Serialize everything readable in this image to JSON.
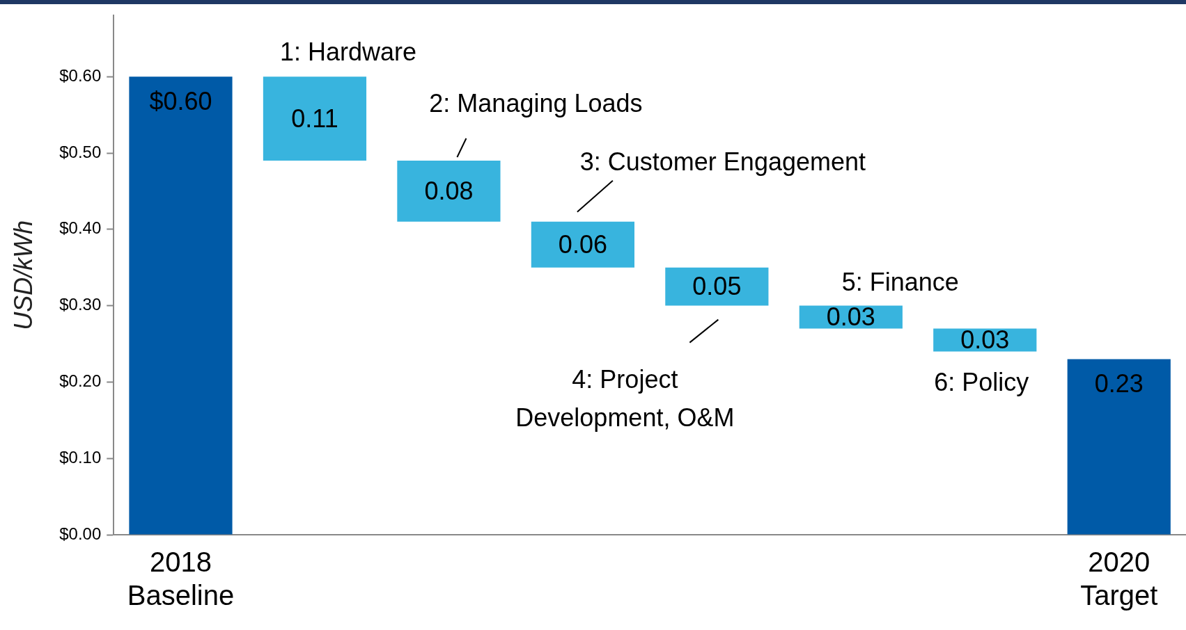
{
  "chart_data": {
    "type": "bar",
    "ylabel": "USD/kWh",
    "categories": [
      "2018 Baseline",
      null,
      null,
      null,
      null,
      null,
      null,
      "2020 Target"
    ],
    "values": [
      0.6,
      0.11,
      0.08,
      0.06,
      0.05,
      0.03,
      0.03,
      0.23
    ],
    "base": [
      0,
      0.49,
      0.41,
      0.35,
      0.3,
      0.27,
      0.24,
      0
    ],
    "colors": [
      "#005aa7",
      "#38b4de",
      "#38b4de",
      "#38b4de",
      "#38b4de",
      "#38b4de",
      "#38b4de",
      "#005aa7"
    ],
    "value_labels": [
      "$0.60",
      "0.11",
      "0.08",
      "0.06",
      "0.05",
      "0.03",
      "0.03",
      "0.23"
    ],
    "ylim": [
      0,
      0.68
    ],
    "yticks": [
      {
        "value": 0,
        "label": "$0.00"
      },
      {
        "value": 0.1,
        "label": "$0.10"
      },
      {
        "value": 0.2,
        "label": "$0.20"
      },
      {
        "value": 0.3,
        "label": "$0.30"
      },
      {
        "value": 0.4,
        "label": "$0.40"
      },
      {
        "value": 0.5,
        "label": "$0.50"
      },
      {
        "value": 0.6,
        "label": "$0.60"
      }
    ],
    "annotations": [
      "1: Hardware",
      "2: Managing Loads",
      "3: Customer Engagement",
      "4: Project\nDevelopment, O&M",
      "5: Finance",
      "6: Policy"
    ],
    "grid": false,
    "legend": false
  }
}
